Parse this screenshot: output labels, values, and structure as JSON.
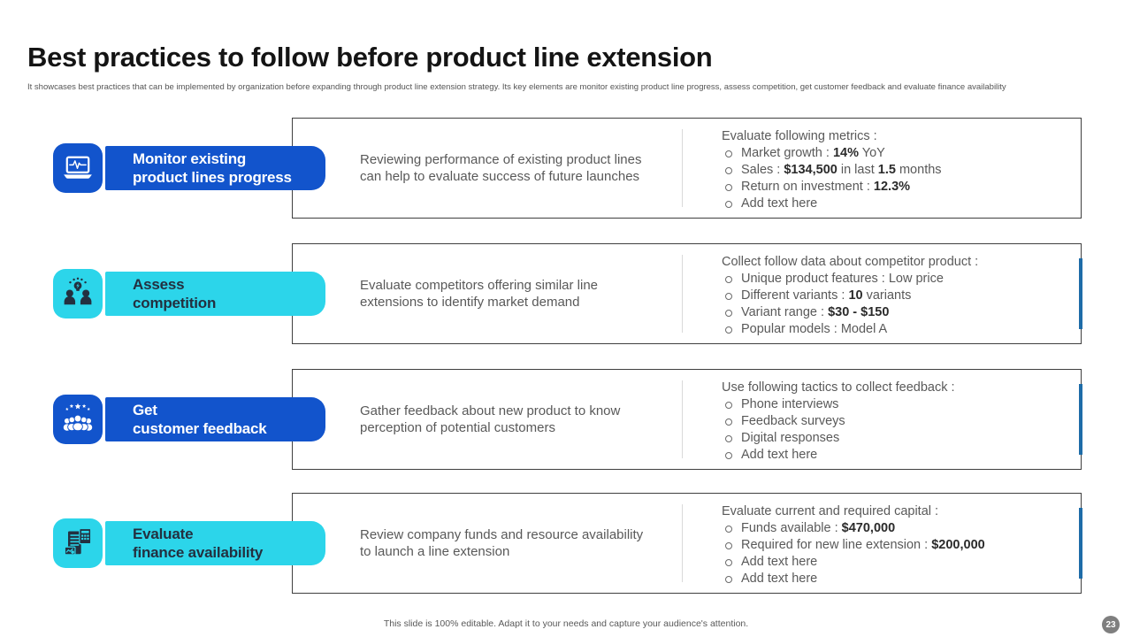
{
  "slide": {
    "title": "Best practices to follow before product line extension",
    "subtitle": "It showcases best practices that can be implemented by organization before expanding through product line extension strategy. Its key elements are monitor existing product line progress, assess competition, get customer feedback and evaluate finance availability",
    "footer_note": "This slide is 100% editable. Adapt it to your needs and capture your audience's attention.",
    "page_number": "23"
  },
  "colors": {
    "blue": "#1254cc",
    "cyan": "#2cd5ea",
    "dark_navy": "#233040",
    "body_text_gray": "#595959",
    "bold_value_text": "#2b2b2b",
    "box_border": "#3f3f3f",
    "divider": "#d9d9d9",
    "right_accent_bar": "#1e6ca8",
    "page_badge_gray": "#7f7f7f"
  },
  "rows": [
    {
      "icon": "laptop-pulse-icon",
      "theme": "blue",
      "label_line1": "Monitor existing",
      "label_line2": "product lines progress",
      "description": "Reviewing performance of existing product lines can help to evaluate success of future launches",
      "list_header": "Evaluate following metrics :",
      "bullets": [
        [
          {
            "t": "Market growth : "
          },
          {
            "t": "14%",
            "b": true
          },
          {
            "t": " YoY"
          }
        ],
        [
          {
            "t": "Sales : "
          },
          {
            "t": "$134,500",
            "b": true
          },
          {
            "t": " in last "
          },
          {
            "t": "1.5",
            "b": true
          },
          {
            "t": " months"
          }
        ],
        [
          {
            "t": "Return on investment : "
          },
          {
            "t": "12.3%",
            "b": true
          }
        ],
        [
          {
            "t": "Add text here"
          }
        ]
      ]
    },
    {
      "icon": "people-idea-icon",
      "theme": "cyan",
      "label_line1": "Assess",
      "label_line2": "competition",
      "description": "Evaluate competitors offering similar line extensions to identify market demand",
      "list_header": "Collect follow data about competitor product :",
      "bullets": [
        [
          {
            "t": "Unique product features : Low price"
          }
        ],
        [
          {
            "t": "Different variants : "
          },
          {
            "t": "10",
            "b": true
          },
          {
            "t": " variants"
          }
        ],
        [
          {
            "t": "Variant range : "
          },
          {
            "t": "$30 - $150",
            "b": true
          }
        ],
        [
          {
            "t": "Popular models : Model A"
          }
        ]
      ]
    },
    {
      "icon": "customer-rating-icon",
      "theme": "blue",
      "label_line1": "Get",
      "label_line2": "customer feedback",
      "description": "Gather feedback about new product to know perception of potential customers",
      "list_header": "Use following tactics to collect feedback :",
      "bullets": [
        [
          {
            "t": "Phone interviews"
          }
        ],
        [
          {
            "t": "Feedback surveys"
          }
        ],
        [
          {
            "t": "Digital responses"
          }
        ],
        [
          {
            "t": "Add text here"
          }
        ]
      ]
    },
    {
      "icon": "finance-documents-icon",
      "theme": "cyan",
      "label_line1": "Evaluate",
      "label_line2": "finance availability",
      "description": "Review company funds and resource availability to launch a line extension",
      "list_header": "Evaluate current and required capital :",
      "bullets": [
        [
          {
            "t": "Funds available : "
          },
          {
            "t": "$470,000",
            "b": true
          }
        ],
        [
          {
            "t": "Required for new line extension : "
          },
          {
            "t": "$200,000",
            "b": true
          }
        ],
        [
          {
            "t": "Add text here"
          }
        ],
        [
          {
            "t": "Add text here"
          }
        ]
      ]
    }
  ]
}
